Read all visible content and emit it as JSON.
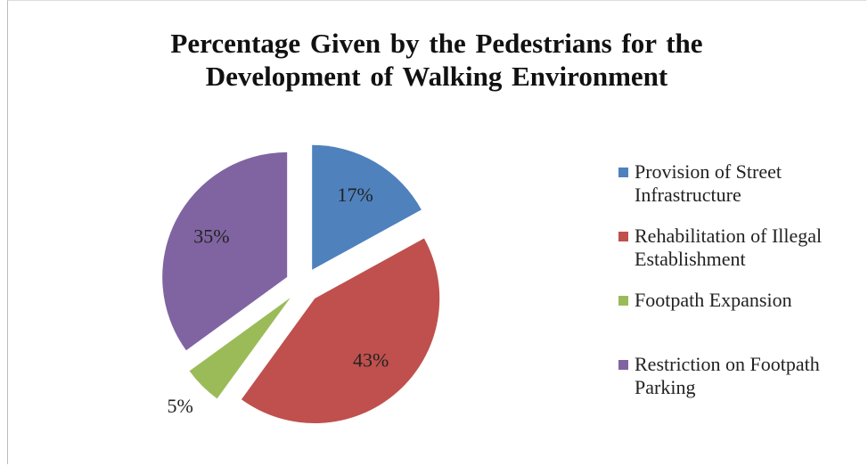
{
  "chart_data": {
    "type": "pie",
    "title": "Percentage Given by the Pedestrians for the Development of Walking Environment",
    "categories": [
      "Provision of Street Infrastructure",
      "Rehabilitation of Illegal Establishment",
      "Footpath Expansion",
      "Restriction on Footpath Parking"
    ],
    "values": [
      17,
      43,
      5,
      35
    ],
    "value_labels": [
      "17%",
      "43%",
      "5%",
      "35%"
    ],
    "colors": [
      "#4f81bd",
      "#c0504d",
      "#9bbb59",
      "#8064a2"
    ],
    "exploded": true,
    "legend": "right"
  }
}
